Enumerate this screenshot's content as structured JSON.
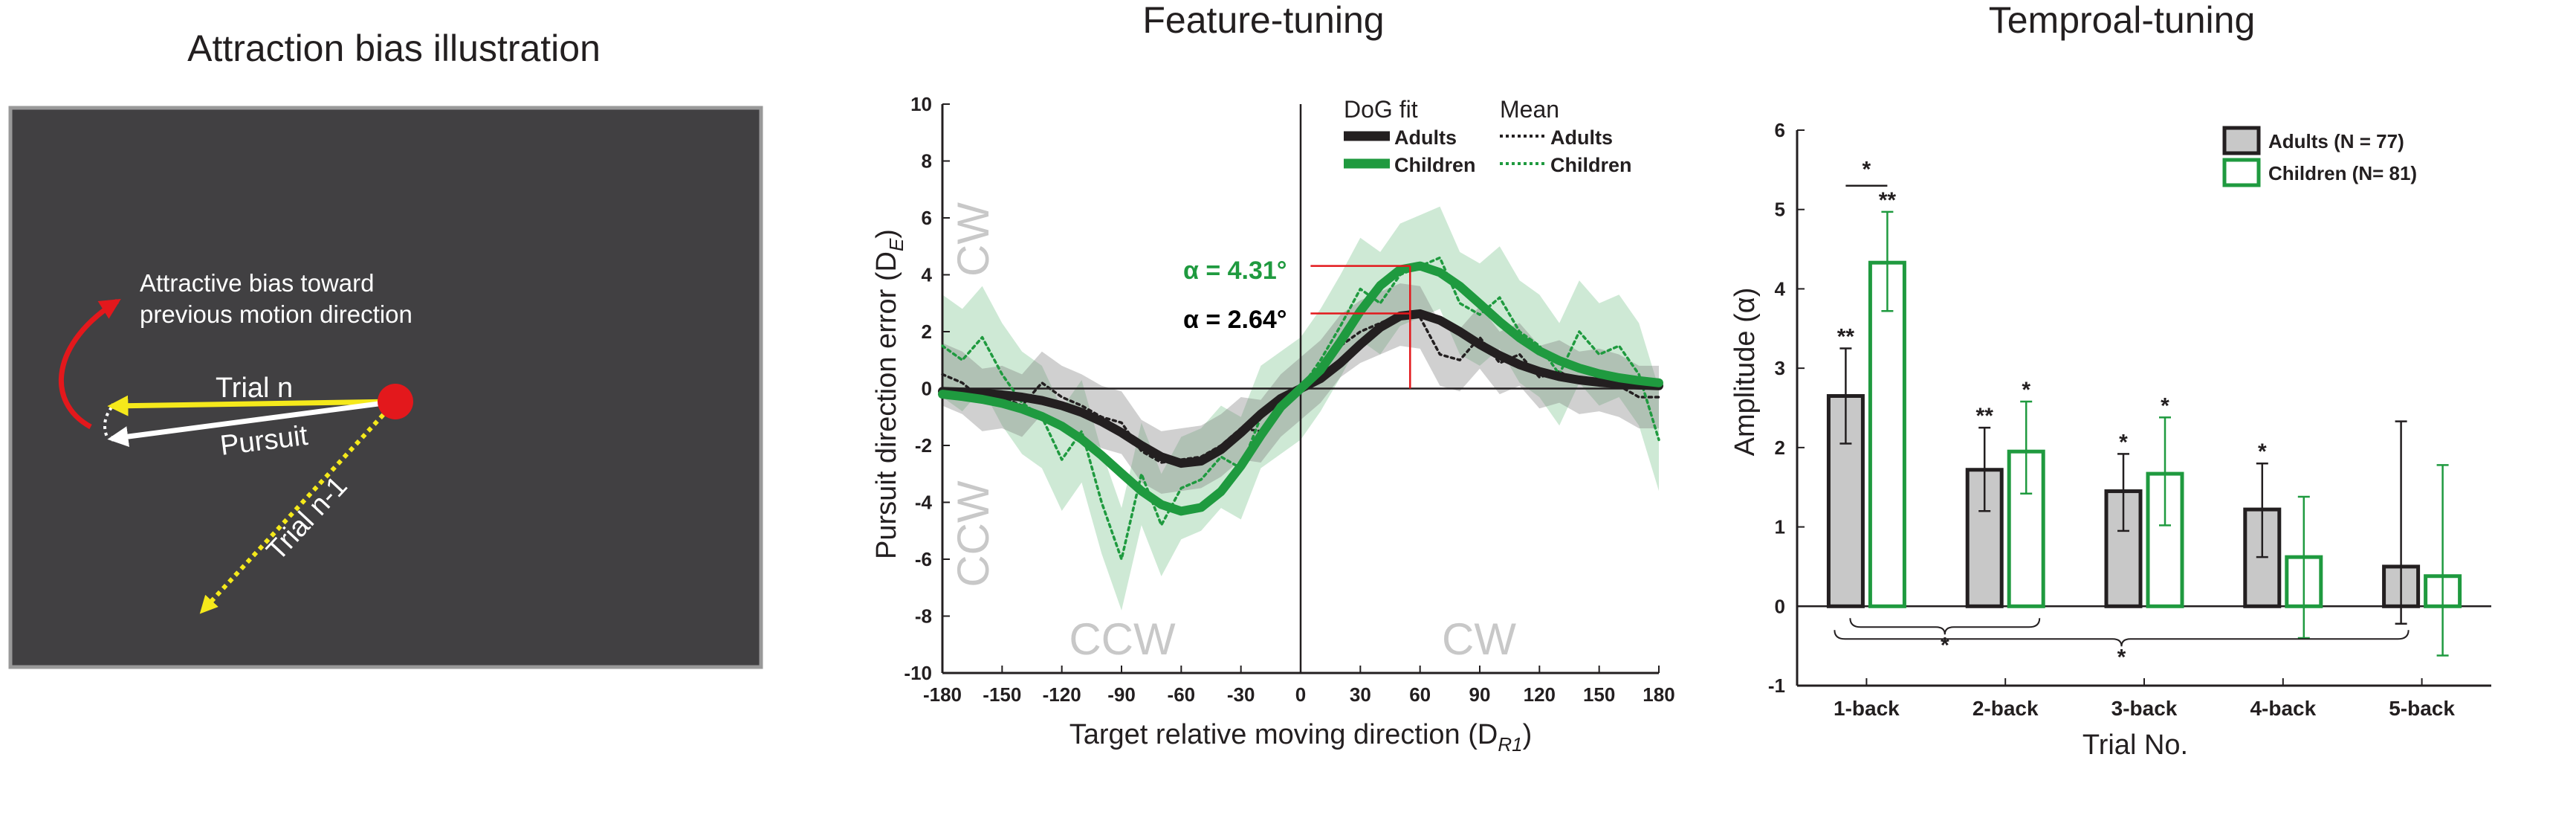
{
  "panel_a": {
    "title": "Attraction bias illustration",
    "label_bias_line1": "Attractive bias toward",
    "label_bias_line2": "previous motion direction",
    "label_trial_n": "Trial n",
    "label_pursuit": "Pursuit",
    "label_trial_n1": "Trial n-1",
    "colors": {
      "background": "#414042",
      "border": "#999999",
      "trial_n": "#f5e91b",
      "pursuit": "#ffffff",
      "trial_n1": "#f5e91b",
      "bias_arrow": "#e3181c",
      "target": "#e3181c"
    }
  },
  "chart_data": [
    {
      "type": "line",
      "title": "Feature-tuning",
      "xlabel": "Target relative moving direction (D",
      "xlabel_sub": "R1",
      "xlabel_end": ")",
      "ylabel": "Pursuit direction error (D",
      "ylabel_sub": "E",
      "ylabel_end": ")",
      "xlim": [
        -180,
        180
      ],
      "ylim": [
        -10,
        10
      ],
      "xticks": [
        -180,
        -150,
        -120,
        -90,
        -60,
        -30,
        0,
        30,
        60,
        90,
        120,
        150,
        180
      ],
      "xtick_labels": [
        "-180",
        "-150",
        "-120",
        "-90",
        "-60",
        "-30",
        "0",
        "30",
        "60",
        "90",
        "120",
        "150",
        "180"
      ],
      "yticks": [
        -10,
        -8,
        -6,
        -4,
        -2,
        0,
        2,
        4,
        6,
        8,
        10
      ],
      "ytick_labels": [
        "-10",
        "-8",
        "-6",
        "-4",
        "-2",
        "0",
        "2",
        "4",
        "6",
        "8",
        "10"
      ],
      "legend_fit_header": "DoG fit",
      "legend_mean_header": "Mean",
      "region_labels": {
        "cw_left": "CW",
        "ccw_left": "CCW",
        "ccw_bottom": "CCW",
        "cw_bottom": "CW"
      },
      "annotations": [
        {
          "text": "α = 4.31°",
          "x": 55,
          "y": 4.31,
          "color": "#1f9a3f"
        },
        {
          "text": "α = 2.64°",
          "x": 52,
          "y": 2.64,
          "color": "#000000"
        }
      ],
      "series": [
        {
          "name": "Adults",
          "kind": "DoG fit",
          "color": "#231f20",
          "x": [
            -180,
            -170,
            -160,
            -150,
            -140,
            -130,
            -120,
            -110,
            -100,
            -90,
            -80,
            -70,
            -60,
            -50,
            -40,
            -30,
            -20,
            -10,
            0,
            10,
            20,
            30,
            40,
            50,
            60,
            70,
            80,
            90,
            100,
            110,
            120,
            130,
            140,
            150,
            160,
            170,
            180
          ],
          "y": [
            -0.1,
            -0.12,
            -0.16,
            -0.22,
            -0.3,
            -0.42,
            -0.6,
            -0.84,
            -1.16,
            -1.55,
            -2.0,
            -2.4,
            -2.63,
            -2.55,
            -2.15,
            -1.55,
            -0.9,
            -0.35,
            0,
            0.35,
            0.9,
            1.55,
            2.15,
            2.55,
            2.63,
            2.4,
            2.0,
            1.55,
            1.16,
            0.84,
            0.6,
            0.42,
            0.3,
            0.22,
            0.16,
            0.12,
            0.1
          ]
        },
        {
          "name": "Children",
          "kind": "DoG fit",
          "color": "#1f9a3f",
          "x": [
            -180,
            -170,
            -160,
            -150,
            -140,
            -130,
            -120,
            -110,
            -100,
            -90,
            -80,
            -70,
            -60,
            -50,
            -40,
            -30,
            -20,
            -10,
            0,
            10,
            20,
            30,
            40,
            50,
            60,
            70,
            80,
            90,
            100,
            110,
            120,
            130,
            140,
            150,
            160,
            170,
            180
          ],
          "y": [
            -0.2,
            -0.28,
            -0.38,
            -0.52,
            -0.72,
            -0.98,
            -1.32,
            -1.78,
            -2.35,
            -2.98,
            -3.6,
            -4.08,
            -4.31,
            -4.18,
            -3.62,
            -2.72,
            -1.65,
            -0.65,
            0,
            0.65,
            1.65,
            2.72,
            3.62,
            4.18,
            4.31,
            4.08,
            3.6,
            2.98,
            2.35,
            1.78,
            1.32,
            0.98,
            0.72,
            0.52,
            0.38,
            0.28,
            0.2
          ]
        },
        {
          "name": "Adults",
          "kind": "Mean",
          "color": "#231f20",
          "x": [
            -180,
            -170,
            -160,
            -150,
            -140,
            -130,
            -120,
            -110,
            -100,
            -90,
            -80,
            -70,
            -60,
            -50,
            -40,
            -30,
            -20,
            -10,
            0,
            10,
            20,
            30,
            40,
            50,
            60,
            70,
            80,
            90,
            100,
            110,
            120,
            130,
            140,
            150,
            160,
            170,
            180
          ],
          "y": [
            0.5,
            0.2,
            -0.4,
            -0.3,
            -0.6,
            0.2,
            -0.3,
            -0.6,
            -1.0,
            -1.2,
            -2.2,
            -2.6,
            -2.5,
            -2.4,
            -2.0,
            -1.4,
            -1.5,
            -0.6,
            0,
            0.6,
            1.5,
            2.0,
            2.3,
            2.6,
            2.5,
            1.2,
            1.0,
            1.8,
            0.9,
            1.2,
            0.4,
            0.6,
            0.2,
            0.3,
            0.1,
            -0.3,
            -0.3
          ]
        },
        {
          "name": "Children",
          "kind": "Mean",
          "color": "#1f9a3f",
          "x": [
            -180,
            -170,
            -160,
            -150,
            -140,
            -130,
            -120,
            -110,
            -100,
            -90,
            -80,
            -70,
            -60,
            -50,
            -40,
            -30,
            -20,
            -10,
            0,
            10,
            20,
            30,
            40,
            50,
            60,
            70,
            80,
            90,
            100,
            110,
            120,
            130,
            140,
            150,
            160,
            170,
            180
          ],
          "y": [
            1.5,
            1.0,
            1.8,
            0.5,
            -0.5,
            -1.0,
            -2.5,
            -1.5,
            -4.0,
            -6.0,
            -3.0,
            -4.8,
            -3.5,
            -3.2,
            -2.4,
            -2.8,
            -1.0,
            -0.5,
            0,
            1.0,
            2.2,
            3.5,
            3.0,
            4.0,
            4.3,
            4.6,
            3.0,
            2.6,
            3.2,
            2.0,
            1.5,
            0.5,
            2.0,
            1.2,
            1.5,
            0.5,
            -1.8
          ]
        }
      ]
    },
    {
      "type": "bar",
      "title": "Temproal-tuning",
      "xlabel": "Trial No.",
      "ylabel": "Amplitude (α)",
      "ylim": [
        -1,
        6
      ],
      "yticks": [
        -1,
        0,
        1,
        2,
        3,
        4,
        5,
        6
      ],
      "ytick_labels": [
        "-1",
        "0",
        "1",
        "2",
        "3",
        "4",
        "5",
        "6"
      ],
      "categories": [
        "1-back",
        "2-back",
        "3-back",
        "4-back",
        "5-back"
      ],
      "series": [
        {
          "name": "Adults (N = 77)",
          "color": "#c8c8c8",
          "edge": "#231f20",
          "values": [
            2.65,
            1.72,
            1.45,
            1.22,
            0.5
          ],
          "err_low": [
            2.05,
            1.2,
            0.95,
            0.62,
            -0.22
          ],
          "err_high": [
            3.25,
            2.25,
            1.92,
            1.8,
            2.33
          ],
          "sig": [
            "**",
            "**",
            "*",
            "*",
            ""
          ]
        },
        {
          "name": "Children (N= 81)",
          "color": "#ffffff",
          "edge": "#1f9a3f",
          "values": [
            4.33,
            1.95,
            1.67,
            0.62,
            0.38
          ],
          "err_low": [
            3.72,
            1.42,
            1.02,
            -0.4,
            -0.62
          ],
          "err_high": [
            4.97,
            2.58,
            2.38,
            1.38,
            1.78
          ],
          "sig": [
            "**",
            "*",
            "*",
            "",
            ""
          ]
        }
      ],
      "comparisons": [
        {
          "text": "*",
          "between": "Adults vs Children, 1-back"
        },
        {
          "text": "*",
          "between": "Children 1-back vs 2-back"
        },
        {
          "text": "*",
          "between": "Children 1-back vs 5-back"
        }
      ]
    }
  ]
}
